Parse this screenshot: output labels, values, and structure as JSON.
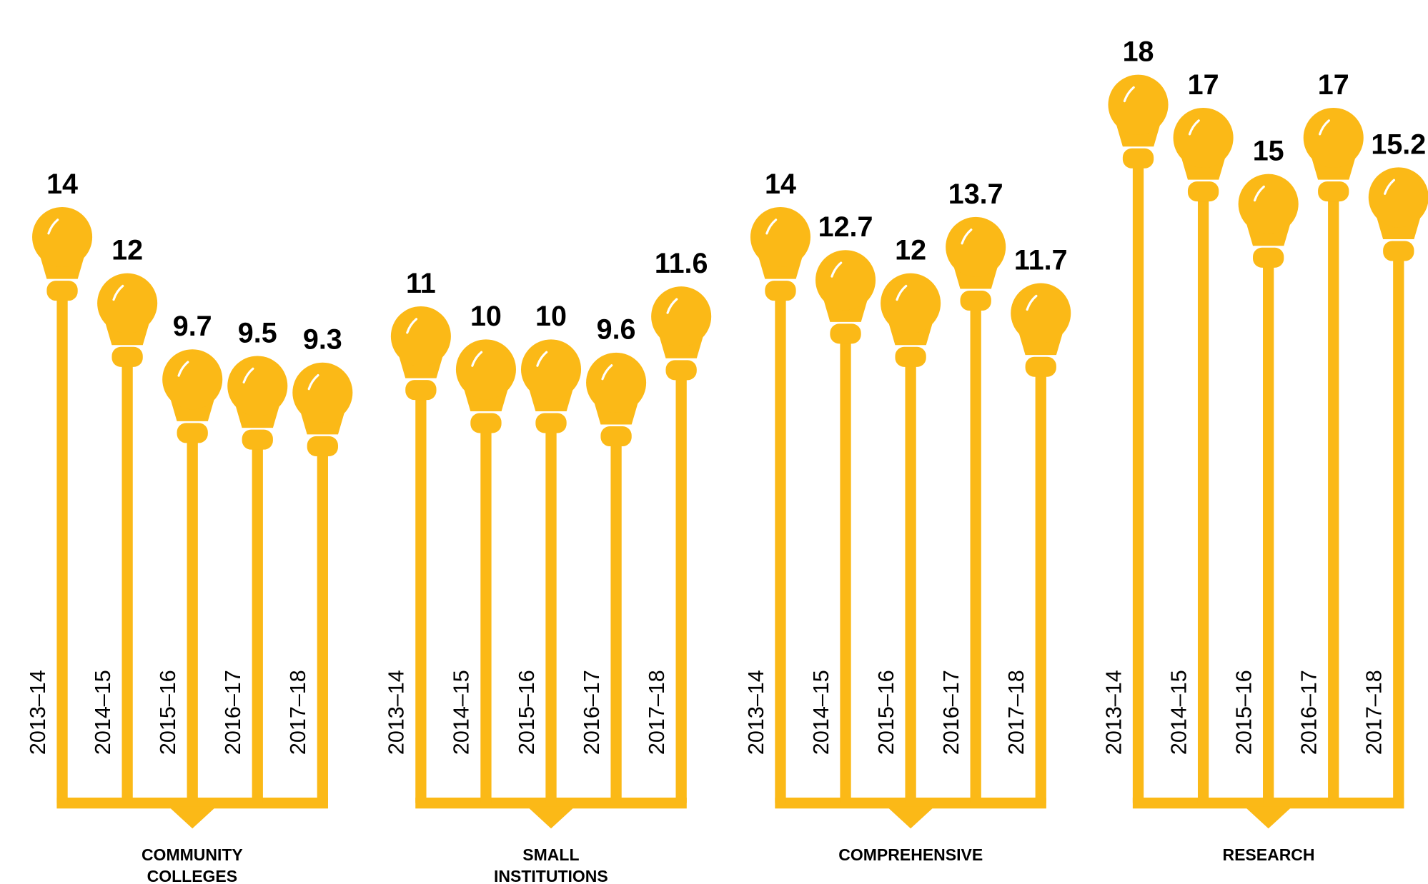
{
  "chart_data": {
    "type": "lightbulb",
    "categories": [
      "2013–14",
      "2014–15",
      "2015–16",
      "2016–17",
      "2017–18"
    ],
    "series": [
      {
        "name": "COMMUNITY COLLEGES",
        "color": "#fbb917",
        "values": [
          14,
          12,
          9.7,
          9.5,
          9.3
        ]
      },
      {
        "name": "SMALL INSTITUTIONS",
        "color": "#fbb917",
        "values": [
          11,
          10,
          10,
          9.6,
          11.6
        ]
      },
      {
        "name": "COMPREHENSIVE",
        "color": "#fbb917",
        "values": [
          14,
          12.7,
          12,
          13.7,
          11.7
        ]
      },
      {
        "name": "RESEARCH",
        "color": "#fbb917",
        "values": [
          18,
          17,
          15,
          17,
          15.2
        ]
      }
    ],
    "ylim": [
      0,
      21
    ]
  }
}
